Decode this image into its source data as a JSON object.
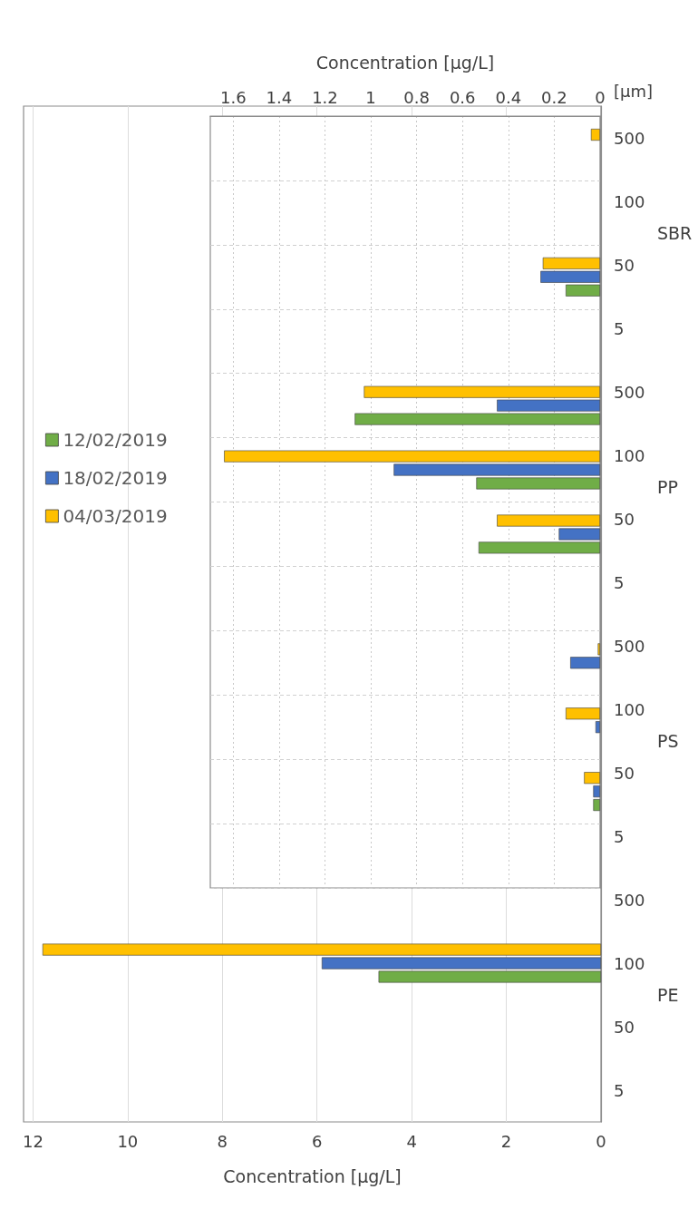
{
  "chart_data": [
    {
      "type": "bar",
      "orientation": "horizontal",
      "categories": [
        "500",
        "100",
        "50",
        "5",
        "500",
        "100",
        "50",
        "5",
        "500",
        "100",
        "50",
        "5",
        "500",
        "100",
        "50",
        "5"
      ],
      "ylabel": "[µm]",
      "xlabel": "Concentration [µg/L]",
      "xlim": [
        12.2,
        0
      ],
      "xticks": [
        12,
        10,
        8,
        6,
        4,
        2,
        0
      ],
      "grid": "x",
      "legend": "left",
      "annotations": [
        "SBR",
        "PP",
        "PS",
        "PE"
      ],
      "series": [
        {
          "name": "12/02/2019",
          "color": "#70ad47",
          "values": [
            null,
            null,
            null,
            null,
            null,
            null,
            null,
            null,
            null,
            null,
            null,
            null,
            null,
            4.7,
            null,
            null
          ]
        },
        {
          "name": "18/02/2019",
          "color": "#4472c4",
          "values": [
            null,
            null,
            null,
            null,
            null,
            null,
            null,
            null,
            null,
            null,
            null,
            null,
            null,
            5.9,
            null,
            null
          ]
        },
        {
          "name": "04/03/2019",
          "color": "#ffc000",
          "values": [
            null,
            null,
            null,
            null,
            null,
            null,
            null,
            null,
            null,
            null,
            null,
            null,
            null,
            11.8,
            null,
            null
          ]
        }
      ]
    },
    {
      "type": "bar",
      "orientation": "horizontal",
      "categories": [
        "500",
        "100",
        "50",
        "5",
        "500",
        "100",
        "50",
        "5",
        "500",
        "100",
        "50",
        "5"
      ],
      "xlabel": "Concentration [µg/L]",
      "xlim": [
        1.7,
        0
      ],
      "xticks": [
        1.6,
        1.4,
        1.2,
        1,
        0.8,
        0.6,
        0.4,
        0.2,
        0
      ],
      "grid": true,
      "tick_labels": "x",
      "series": [
        {
          "color": "#70ad47",
          "values": [
            null,
            null,
            0.15,
            null,
            1.07,
            0.54,
            0.53,
            null,
            null,
            null,
            0.03,
            null
          ]
        },
        {
          "color": "#4472c4",
          "values": [
            null,
            null,
            0.26,
            null,
            0.45,
            0.9,
            0.18,
            null,
            0.13,
            0.02,
            0.03,
            null
          ]
        },
        {
          "color": "#ffc000",
          "values": [
            0.04,
            null,
            0.25,
            null,
            1.03,
            1.64,
            0.45,
            null,
            0.01,
            0.15,
            0.07,
            null
          ]
        }
      ]
    }
  ]
}
